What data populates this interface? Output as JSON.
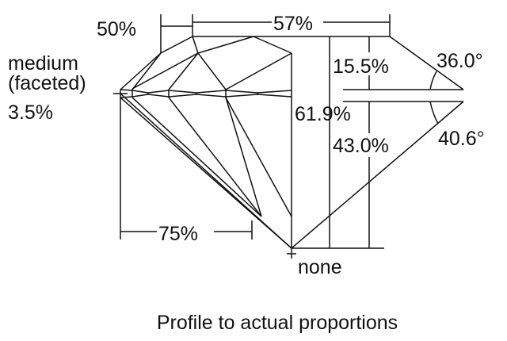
{
  "labels": {
    "crown_percent": "50%",
    "table_percent": "57%",
    "crown_height": "15.5%",
    "crown_angle": "36.0°",
    "girdle_line1": "medium",
    "girdle_line2": "(faceted)",
    "girdle_percent": "3.5%",
    "total_depth": "61.9%",
    "pavilion_depth": "43.0%",
    "pavilion_angle": "40.6°",
    "lower_half": "75%",
    "culet": "none"
  },
  "caption": "Profile to actual proportions",
  "colors": {
    "line": "#111111",
    "background": "#ffffff"
  }
}
